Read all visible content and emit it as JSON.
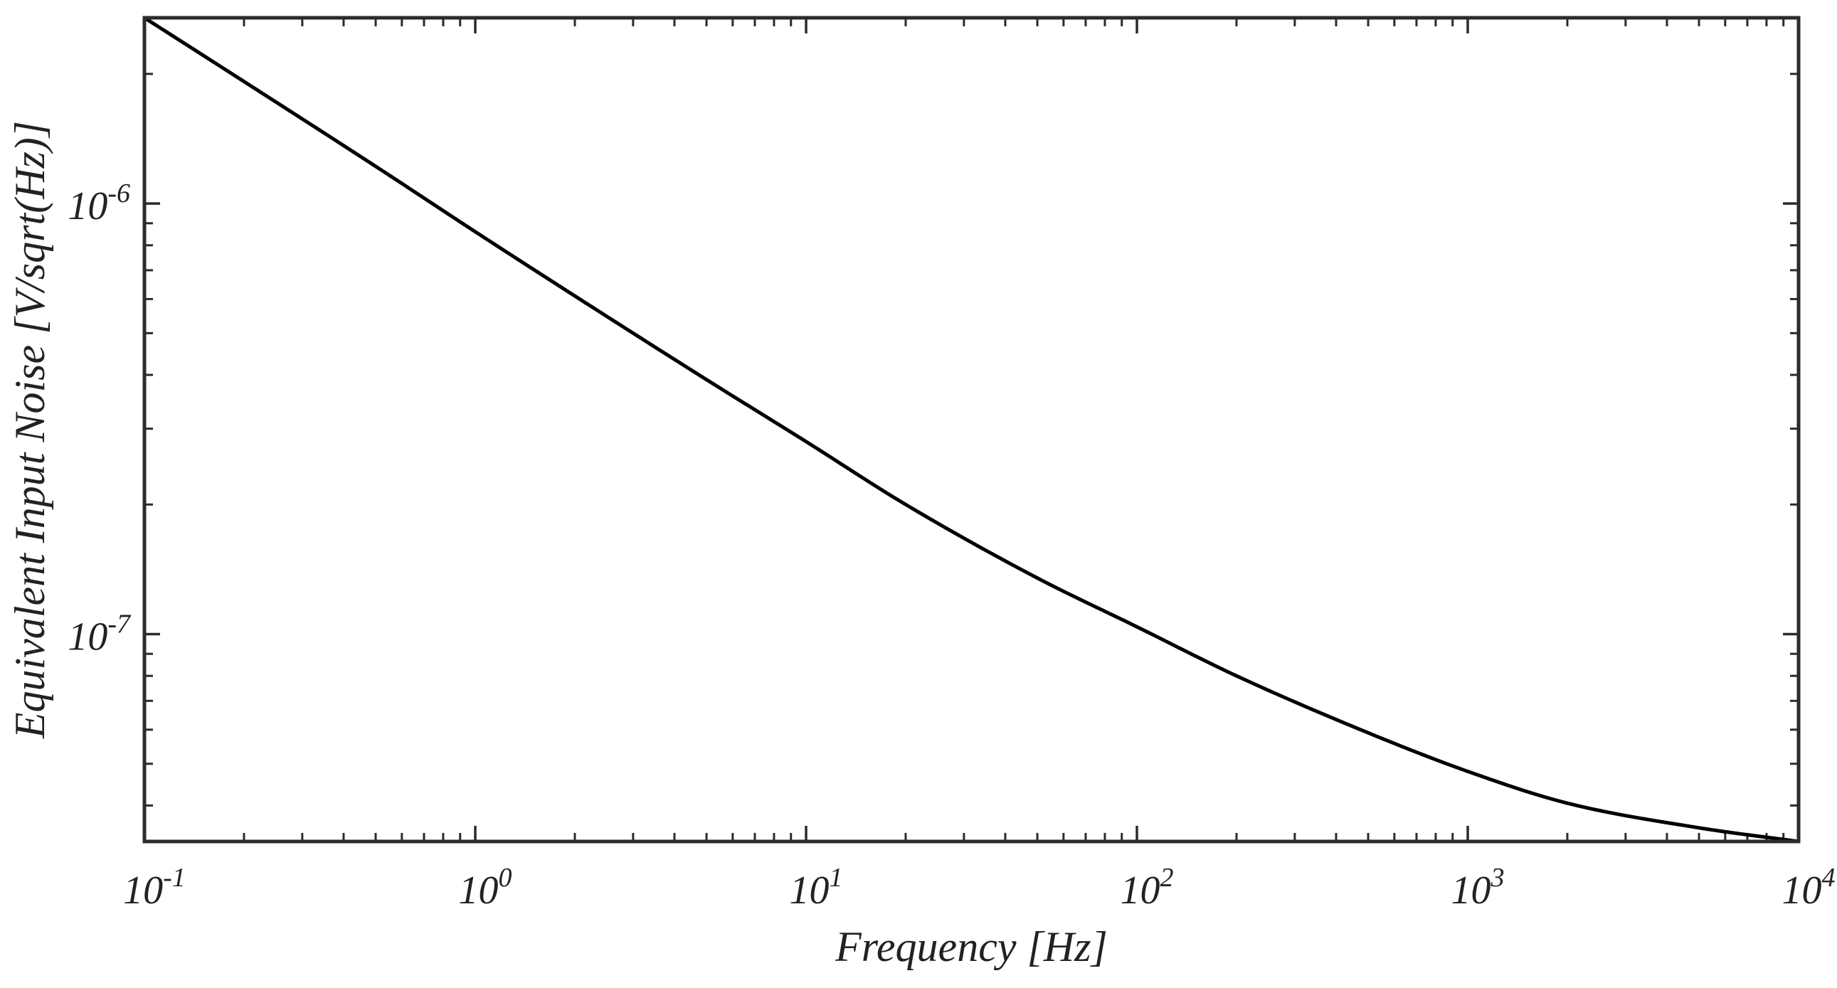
{
  "chart_data": {
    "type": "line",
    "xlabel": "Frequency [Hz]",
    "ylabel": "Equivalent Input Noise [V/sqrt(Hz)]",
    "xscale": "log",
    "yscale": "log",
    "xlim": [
      0.1,
      10000
    ],
    "ylim": [
      3.3e-08,
      2.7e-06
    ],
    "grid": false,
    "legend": "none",
    "line_color": "#000000",
    "x_ticks": [
      {
        "value": 0.1,
        "base": "10",
        "exp": "-1"
      },
      {
        "value": 1,
        "base": "10",
        "exp": "0"
      },
      {
        "value": 10,
        "base": "10",
        "exp": "1"
      },
      {
        "value": 100,
        "base": "10",
        "exp": "2"
      },
      {
        "value": 1000,
        "base": "10",
        "exp": "3"
      },
      {
        "value": 10000,
        "base": "10",
        "exp": "4"
      }
    ],
    "y_ticks": [
      {
        "value": 1e-07,
        "base": "10",
        "exp": "-7"
      },
      {
        "value": 1e-06,
        "base": "10",
        "exp": "-6"
      }
    ],
    "series": [
      {
        "x": [
          0.1,
          0.2,
          0.5,
          1,
          2,
          5,
          10,
          20,
          50,
          100,
          200,
          500,
          1000,
          2000,
          5000,
          10000
        ],
        "y": [
          2.7e-06,
          1.92e-06,
          1.22e-06,
          8.6e-07,
          6.1e-07,
          3.9e-07,
          2.8e-07,
          2e-07,
          1.35e-07,
          1.04e-07,
          8e-08,
          5.9e-08,
          4.8e-08,
          4.05e-08,
          3.55e-08,
          3.3e-08
        ]
      }
    ]
  }
}
